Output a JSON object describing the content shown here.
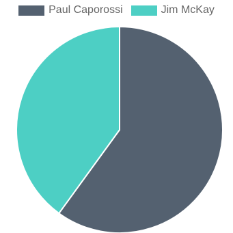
{
  "chart_data": {
    "type": "pie",
    "series": [
      {
        "name": "Paul Caporossi",
        "value": 60,
        "color": "#546170"
      },
      {
        "name": "Jim McKay",
        "value": 40,
        "color": "#4dcfc4"
      }
    ],
    "legend_position": "top",
    "start_angle_deg": 0,
    "slice_border_color": "#ffffff"
  }
}
